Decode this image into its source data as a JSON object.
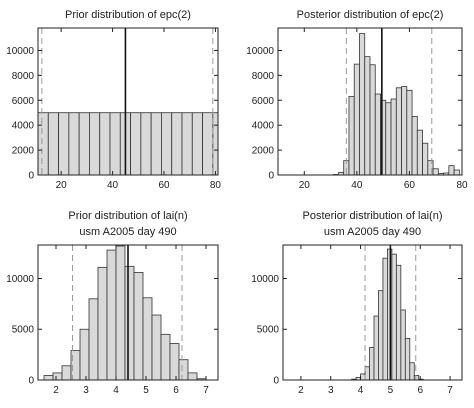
{
  "chart_data": [
    {
      "type": "bar",
      "title": "Prior distribution of epc(2)",
      "subtitle": "",
      "bin_edges": [
        11,
        15,
        19,
        23,
        27,
        31,
        35,
        39,
        43,
        47,
        51,
        55,
        59,
        63,
        67,
        71,
        75,
        79,
        81
      ],
      "values": [
        5000,
        5000,
        5000,
        5000,
        5000,
        5000,
        5000,
        5000,
        5000,
        5000,
        5000,
        5000,
        5000,
        5000,
        5000,
        5000,
        5000,
        5000
      ],
      "xlim": [
        11,
        81
      ],
      "ylim": [
        0,
        11800
      ],
      "xticks": [
        20,
        40,
        60,
        80
      ],
      "yticks": [
        0,
        2000,
        4000,
        6000,
        8000,
        10000
      ],
      "solid_line": 45,
      "dashed_lines": [
        12.5,
        79
      ]
    },
    {
      "type": "bar",
      "title": "Posterior distribution of epc(2)",
      "subtitle": "",
      "bin_edges": [
        29,
        31,
        33,
        35,
        37,
        39,
        41,
        43,
        45,
        47,
        49,
        51,
        53,
        55,
        57,
        59,
        61,
        63,
        65,
        67,
        69,
        71,
        73,
        75,
        77,
        79
      ],
      "values": [
        0,
        40,
        200,
        1150,
        6300,
        8900,
        11350,
        9500,
        8850,
        6500,
        6000,
        5800,
        6100,
        7000,
        7100,
        6800,
        4700,
        3600,
        2550,
        1150,
        500,
        120,
        160,
        750,
        400
      ],
      "xlim": [
        10,
        80
      ],
      "ylim": [
        0,
        11800
      ],
      "xticks": [
        20,
        40,
        60,
        80
      ],
      "yticks": [
        0,
        2000,
        4000,
        6000,
        8000,
        10000
      ],
      "solid_line": 49.5,
      "dashed_lines": [
        36,
        68.5
      ]
    },
    {
      "type": "bar",
      "title": "Prior distribution of lai(n)",
      "subtitle": "usm A2005 day 490",
      "bin_edges": [
        1.6,
        1.9,
        2.2,
        2.5,
        2.8,
        3.1,
        3.4,
        3.7,
        4.0,
        4.3,
        4.6,
        4.9,
        5.2,
        5.5,
        5.8,
        6.1,
        6.4,
        6.7,
        7.0
      ],
      "values": [
        450,
        700,
        1400,
        2900,
        5000,
        8000,
        11100,
        12800,
        13200,
        11200,
        10600,
        8100,
        6400,
        4500,
        3600,
        2000,
        700,
        120
      ],
      "xlim": [
        1.4,
        7.4
      ],
      "ylim": [
        0,
        13300
      ],
      "xticks": [
        2,
        3,
        4,
        5,
        6,
        7
      ],
      "yticks": [
        0,
        5000,
        10000
      ],
      "solid_line": 4.4,
      "dashed_lines": [
        2.55,
        6.2
      ]
    },
    {
      "type": "bar",
      "title": "Posterior distribution of lai(n)",
      "subtitle": "usm A2005 day 490",
      "bin_edges": [
        3.7,
        3.85,
        4.0,
        4.15,
        4.3,
        4.45,
        4.6,
        4.75,
        4.9,
        5.05,
        5.2,
        5.35,
        5.5,
        5.65,
        5.8,
        5.95,
        6.1
      ],
      "values": [
        80,
        250,
        600,
        1300,
        3200,
        6300,
        8800,
        12000,
        12900,
        12400,
        11300,
        6900,
        4100,
        1700,
        450,
        80
      ],
      "xlim": [
        1.4,
        7.4
      ],
      "ylim": [
        0,
        13300
      ],
      "xticks": [
        2,
        3,
        4,
        5,
        6,
        7
      ],
      "yticks": [
        0,
        5000,
        10000
      ],
      "solid_line": 5.0,
      "dashed_lines": [
        4.15,
        5.85
      ]
    }
  ]
}
